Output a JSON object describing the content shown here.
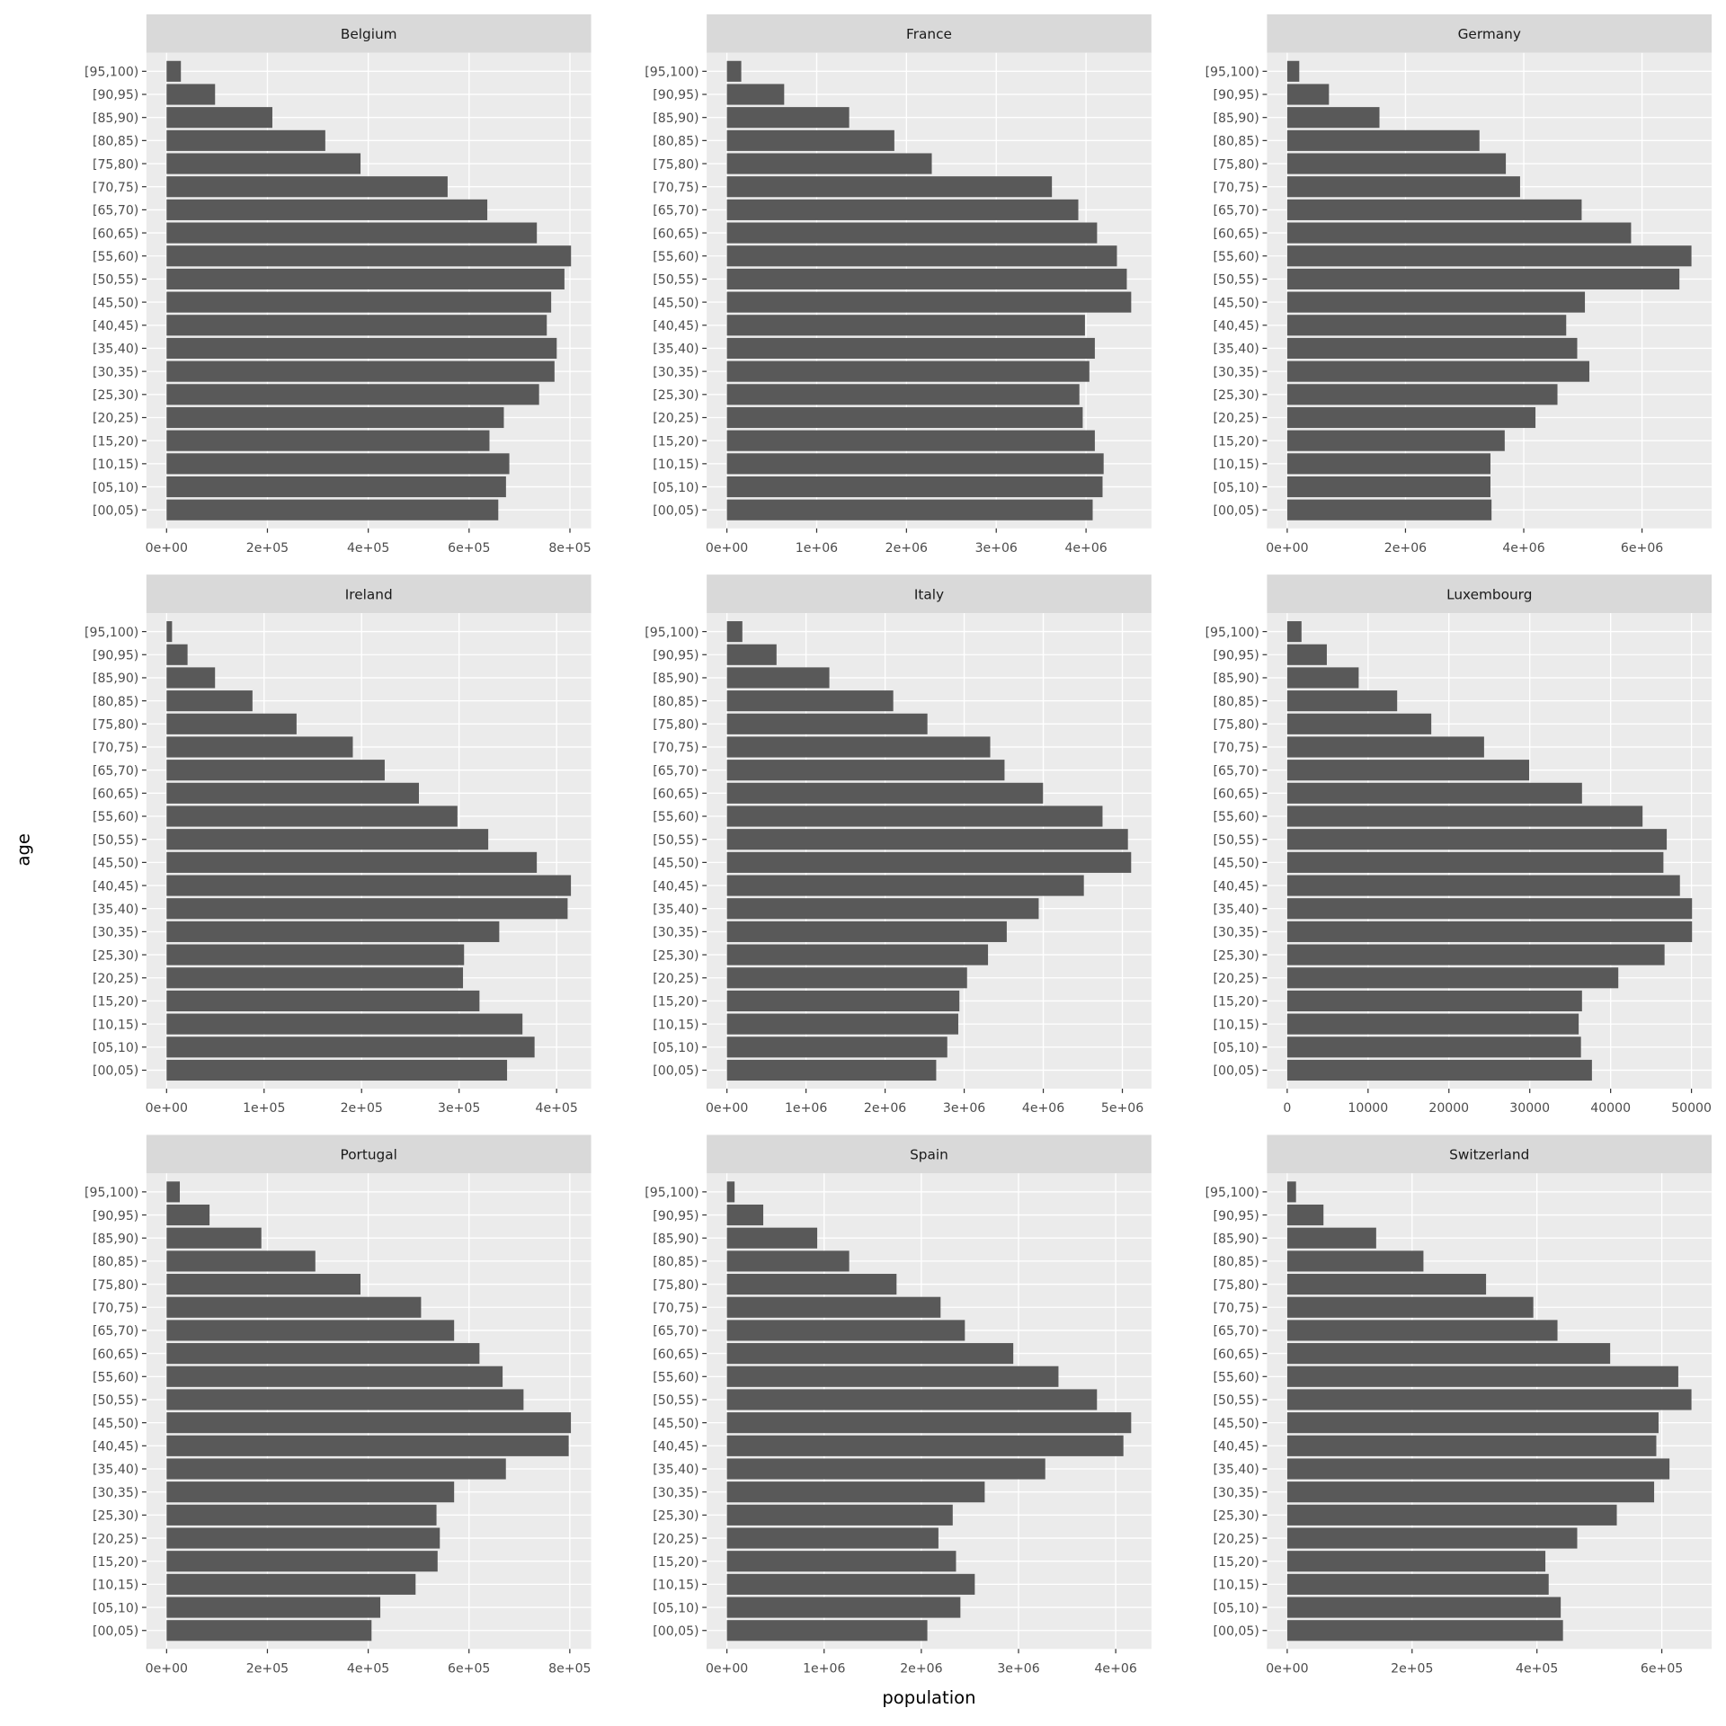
{
  "chart_data": {
    "type": "bar",
    "orientation": "horizontal",
    "x_label": "population",
    "y_label": "age",
    "color": "#595959",
    "grid": true,
    "categories": [
      "[00,05)",
      "[05,10)",
      "[10,15)",
      "[15,20)",
      "[20,25)",
      "[25,30)",
      "[30,35)",
      "[35,40)",
      "[40,45)",
      "[45,50)",
      "[50,55)",
      "[55,60)",
      "[60,65)",
      "[65,70)",
      "[70,75)",
      "[75,80)",
      "[80,85)",
      "[85,90)",
      "[90,95)",
      "[95,100)"
    ],
    "facets": [
      {
        "title": "Belgium",
        "xlim": [
          -40000,
          842000
        ],
        "xticks": [
          {
            "value": 0,
            "label": "0e+00"
          },
          {
            "value": 200000,
            "label": "2e+05"
          },
          {
            "value": 400000,
            "label": "4e+05"
          },
          {
            "value": 600000,
            "label": "6e+05"
          },
          {
            "value": 800000,
            "label": "8e+05"
          }
        ],
        "values": [
          657900,
          673200,
          679800,
          640400,
          668900,
          738800,
          769400,
          773800,
          754100,
          762800,
          789100,
          802200,
          734400,
          636100,
          557400,
          384700,
          314800,
          209800,
          96200,
          28400
        ]
      },
      {
        "title": "France",
        "xlim": [
          -225000,
          4728000
        ],
        "xticks": [
          {
            "value": 0,
            "label": "0e+00"
          },
          {
            "value": 1000000,
            "label": "1e+06"
          },
          {
            "value": 2000000,
            "label": "2e+06"
          },
          {
            "value": 3000000,
            "label": "3e+06"
          },
          {
            "value": 4000000,
            "label": "4e+06"
          }
        ],
        "values": [
          4074000,
          4184000,
          4196000,
          4098000,
          3963000,
          3926000,
          4037000,
          4098000,
          3988000,
          4503000,
          4454000,
          4344000,
          4123000,
          3914000,
          3620000,
          2282000,
          1865000,
          1362000,
          638000,
          160000
        ]
      },
      {
        "title": "Germany",
        "xlim": [
          -342000,
          7178000
        ],
        "xticks": [
          {
            "value": 0,
            "label": "0e+00"
          },
          {
            "value": 2000000,
            "label": "2e+06"
          },
          {
            "value": 4000000,
            "label": "4e+06"
          },
          {
            "value": 6000000,
            "label": "6e+06"
          }
        ],
        "values": [
          3455000,
          3437000,
          3437000,
          3678000,
          4198000,
          4570000,
          5109000,
          4904000,
          4718000,
          5034000,
          6632000,
          6836000,
          5815000,
          4979000,
          3938000,
          3697000,
          3251000,
          1560000,
          706000,
          204000
        ]
      },
      {
        "title": "Ireland",
        "xlim": [
          -20700,
          435400
        ],
        "xticks": [
          {
            "value": 0,
            "label": "0e+00"
          },
          {
            "value": 100000,
            "label": "1e+05"
          },
          {
            "value": 200000,
            "label": "2e+05"
          },
          {
            "value": 300000,
            "label": "3e+05"
          },
          {
            "value": 400000,
            "label": "4e+05"
          }
        ],
        "values": [
          349200,
          377400,
          365000,
          320900,
          304000,
          305100,
          341200,
          411300,
          414700,
          379700,
          329900,
          298300,
          258800,
          223700,
          191000,
          133300,
          88100,
          49700,
          21500,
          5600
        ]
      },
      {
        "title": "Italy",
        "xlim": [
          -256000,
          5367000
        ],
        "xticks": [
          {
            "value": 0,
            "label": "0e+00"
          },
          {
            "value": 1000000,
            "label": "1e+06"
          },
          {
            "value": 2000000,
            "label": "2e+06"
          },
          {
            "value": 3000000,
            "label": "3e+06"
          },
          {
            "value": 4000000,
            "label": "4e+06"
          },
          {
            "value": 5000000,
            "label": "5e+06"
          }
        ],
        "values": [
          2646000,
          2786000,
          2925000,
          2939000,
          3036000,
          3301000,
          3538000,
          3942000,
          4513000,
          5111000,
          5070000,
          4749000,
          3997000,
          3510000,
          3329000,
          2535000,
          2103000,
          1295000,
          627000,
          195000
        ]
      },
      {
        "title": "Luxembourg",
        "xlim": [
          -2500,
          52500
        ],
        "xticks": [
          0,
          10000,
          20000,
          30000,
          40000,
          50000
        ],
        "values": [
          37690,
          36330,
          36050,
          36460,
          40950,
          46670,
          50070,
          50070,
          48570,
          46530,
          46940,
          43950,
          36460,
          29930,
          24350,
          17820,
          13600,
          8840,
          4900,
          1770
        ]
      },
      {
        "title": "Portugal",
        "xlim": [
          -40100,
          842300
        ],
        "xticks": [
          {
            "value": 0,
            "label": "0e+00"
          },
          {
            "value": 200000,
            "label": "2e+05"
          },
          {
            "value": 400000,
            "label": "4e+05"
          },
          {
            "value": 600000,
            "label": "6e+05"
          },
          {
            "value": 800000,
            "label": "8e+05"
          }
        ],
        "values": [
          406600,
          424000,
          494000,
          537700,
          542100,
          535500,
          570500,
          673200,
          797800,
          802200,
          708200,
          666700,
          620800,
          570500,
          504900,
          384700,
          295100,
          188000,
          85200,
          26200
        ]
      },
      {
        "title": "Spain",
        "xlim": [
          -208000,
          4367000
        ],
        "xticks": [
          {
            "value": 0,
            "label": "0e+00"
          },
          {
            "value": 1000000,
            "label": "1e+06"
          },
          {
            "value": 2000000,
            "label": "2e+06"
          },
          {
            "value": 3000000,
            "label": "3e+06"
          },
          {
            "value": 4000000,
            "label": "4e+06"
          }
        ],
        "values": [
          2062000,
          2402000,
          2550000,
          2357000,
          2176000,
          2323000,
          2652000,
          3275000,
          4079000,
          4159000,
          3807000,
          3411000,
          2946000,
          2448000,
          2198000,
          1745000,
          1258000,
          929000,
          374000,
          79000
        ]
      },
      {
        "title": "Switzerland",
        "xlim": [
          -32400,
          679900
        ],
        "xticks": [
          {
            "value": 0,
            "label": "0e+00"
          },
          {
            "value": 200000,
            "label": "2e+05"
          },
          {
            "value": 400000,
            "label": "4e+05"
          },
          {
            "value": 600000,
            "label": "6e+05"
          }
        ],
        "values": [
          441700,
          438100,
          418800,
          413500,
          464500,
          527900,
          587700,
          612300,
          591200,
          594800,
          647500,
          626400,
          517300,
          432900,
          394200,
          318500,
          218200,
          142500,
          58100,
          14100
        ]
      }
    ]
  }
}
